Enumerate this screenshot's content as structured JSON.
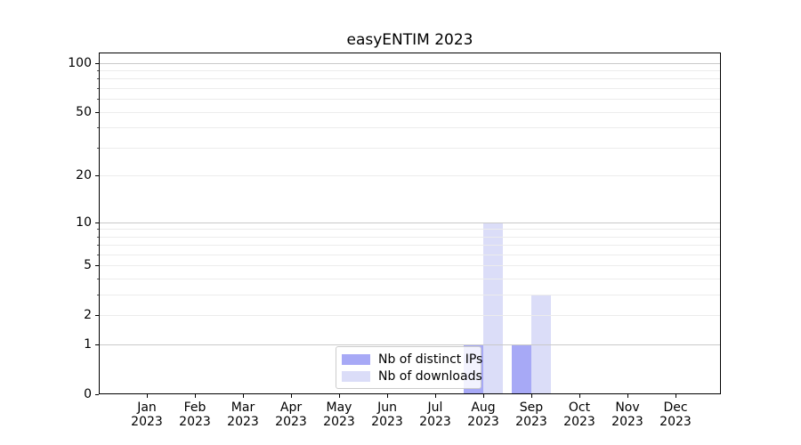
{
  "chart_data": {
    "type": "bar",
    "title": "easyENTIM 2023",
    "months": [
      "Jan",
      "Feb",
      "Mar",
      "Apr",
      "May",
      "Jun",
      "Jul",
      "Aug",
      "Sep",
      "Oct",
      "Nov",
      "Dec"
    ],
    "year": "2023",
    "series": [
      {
        "name": "Nb of distinct IPs",
        "color": "#a7a9f6",
        "values": [
          0,
          0,
          0,
          0,
          0,
          0,
          0,
          1,
          1,
          0,
          0,
          0
        ]
      },
      {
        "name": "Nb of downloads",
        "color": "#dbddf8",
        "values": [
          0,
          0,
          0,
          0,
          0,
          0,
          0,
          10,
          3,
          0,
          0,
          0
        ]
      }
    ],
    "y_scale": "log1p",
    "y_ticks": [
      0,
      1,
      2,
      5,
      10,
      20,
      50,
      100
    ],
    "y_minor_ticks": [
      3,
      4,
      6,
      7,
      8,
      9,
      30,
      40,
      60,
      70,
      80,
      90
    ],
    "ylim": [
      0,
      110
    ],
    "grid": true,
    "legend_position": "lower center",
    "colors": {
      "grid_major": "#c9c9c9",
      "grid_minor": "#ececec",
      "axis": "#000000"
    }
  }
}
